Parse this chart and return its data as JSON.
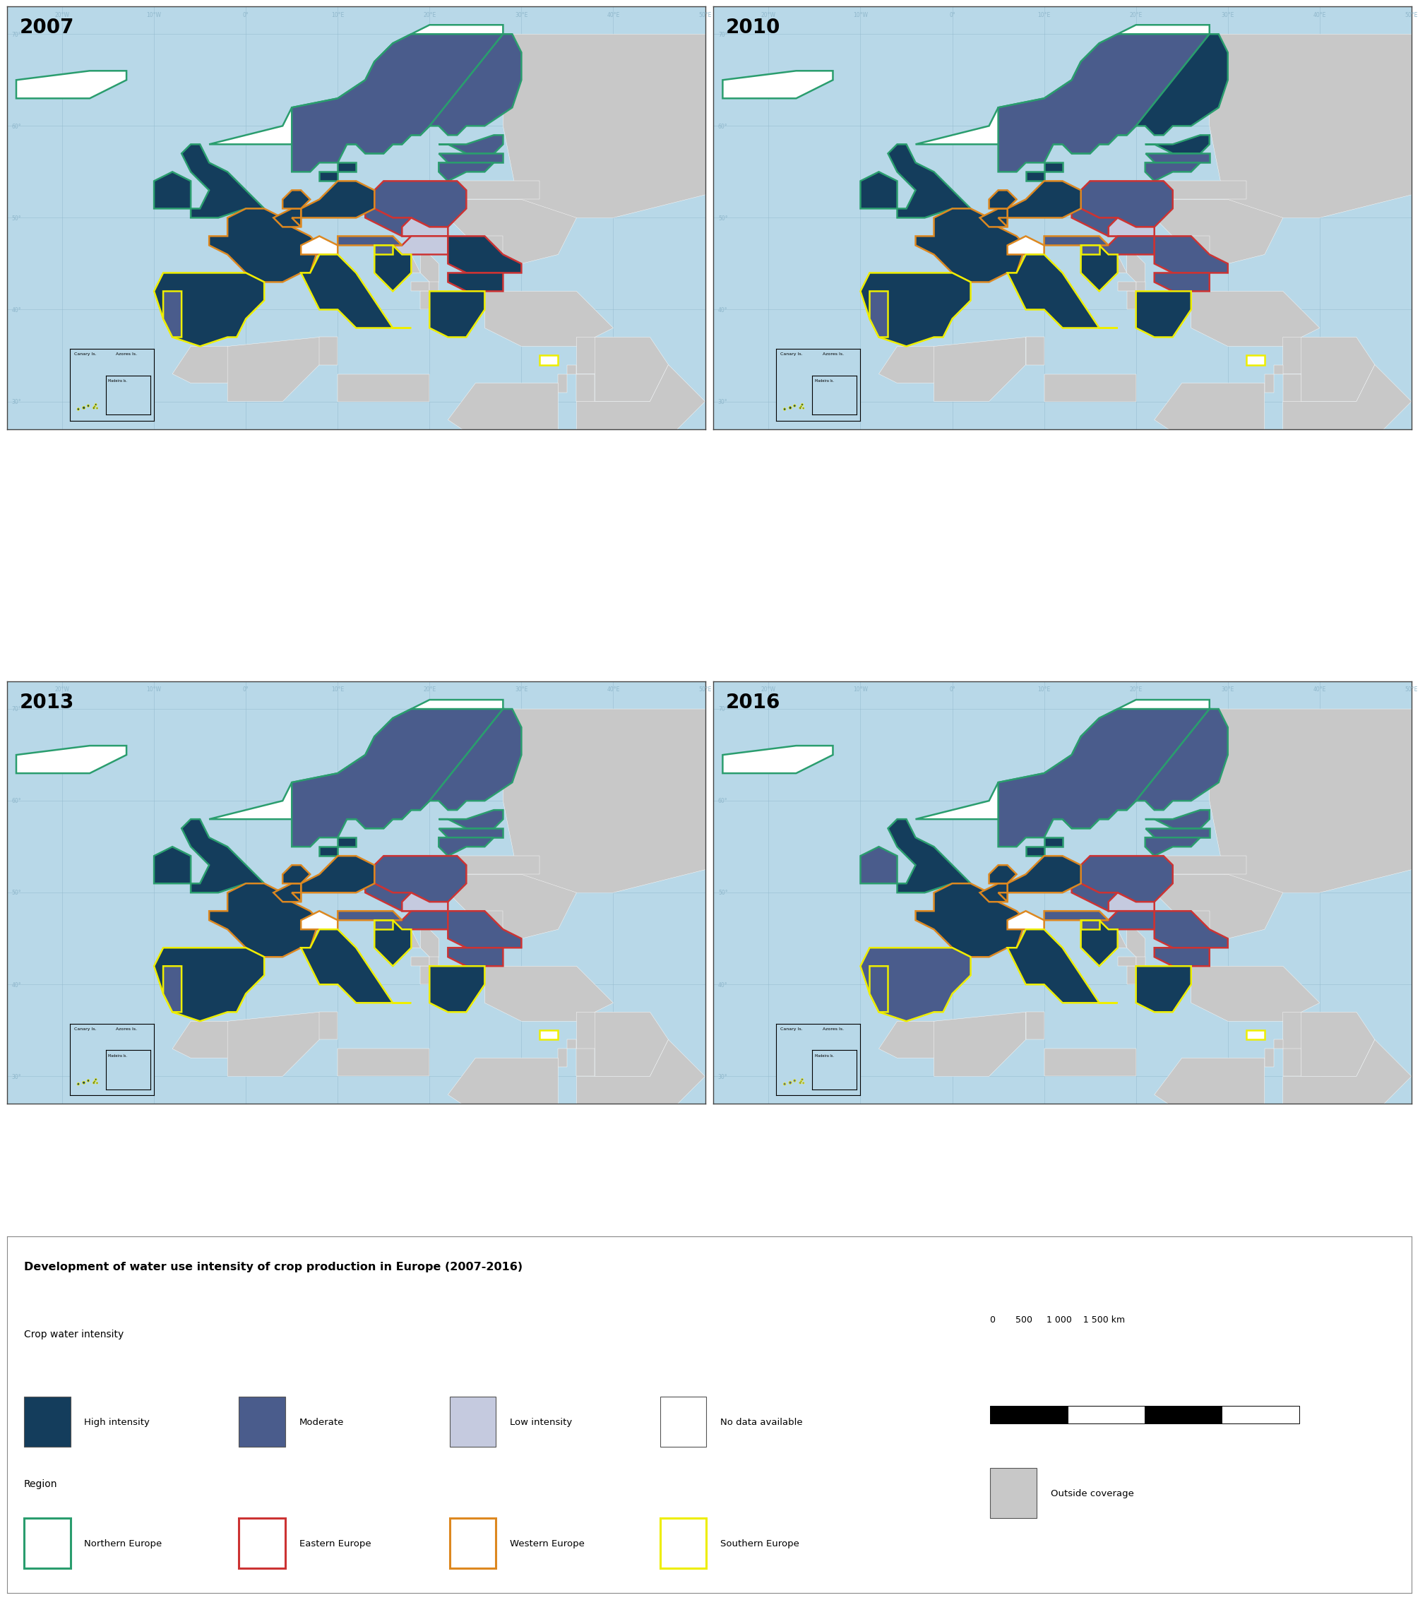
{
  "title": "Development of water use intensity of crop production in Europe (2007-2016)",
  "years": [
    "2007",
    "2010",
    "2013",
    "2016"
  ],
  "colors": {
    "high_intensity": "#143d5c",
    "moderate": "#4a5c8c",
    "low_intensity": "#c5cadf",
    "no_data": "#ffffff",
    "outside_coverage": "#c8c8c8",
    "ocean": "#b8d8e8",
    "northern_europe_border": "#2a9d6e",
    "eastern_europe_border": "#cc3333",
    "western_europe_border": "#dd8820",
    "southern_europe_border": "#eeee00",
    "background": "#ffffff",
    "map_background": "#b8d8e8",
    "graticule": "#90b8cc",
    "land_non_europe": "#c8c8c8",
    "border_internal": "#ffffff"
  },
  "legend_title": "Development of water use intensity of crop production in Europe (2007-2016)",
  "crop_water_label": "Crop water intensity",
  "region_label": "Region",
  "intensity_labels": [
    "High intensity",
    "Moderate",
    "Low intensity",
    "No data available"
  ],
  "region_labels": [
    "Northern Europe",
    "Eastern Europe",
    "Western Europe",
    "Southern Europe"
  ],
  "scale_label": "0    500   1 000   1 500 km",
  "outside_coverage_label": "Outside coverage",
  "intensity_by_year": {
    "2007": {
      "France": "high",
      "Belgium": "high",
      "Netherlands": "high",
      "Germany": "high",
      "Denmark": "high",
      "United Kingdom": "high",
      "Spain": "high",
      "Italy": "high",
      "Greece": "high",
      "Croatia": "high",
      "Bulgaria": "high",
      "Romania": "high",
      "Ireland": "high",
      "Luxembourg": "high",
      "Sweden": "moderate",
      "Finland": "moderate",
      "Estonia": "moderate",
      "Latvia": "moderate",
      "Lithuania": "moderate",
      "Poland": "moderate",
      "Czech Republic": "moderate",
      "Austria": "moderate",
      "Portugal": "moderate",
      "Slovenia": "moderate",
      "Slovakia": "low",
      "Hungary": "low",
      "Norway": "no_data",
      "Iceland": "no_data",
      "Switzerland": "no_data",
      "Cyprus": "no_data"
    },
    "2010": {
      "France": "high",
      "Belgium": "high",
      "Netherlands": "high",
      "Germany": "high",
      "Denmark": "high",
      "United Kingdom": "high",
      "Spain": "high",
      "Italy": "high",
      "Greece": "high",
      "Croatia": "high",
      "Finland": "high",
      "Estonia": "high",
      "Ireland": "high",
      "Luxembourg": "high",
      "Sweden": "moderate",
      "Latvia": "moderate",
      "Lithuania": "moderate",
      "Poland": "moderate",
      "Czech Republic": "moderate",
      "Hungary": "moderate",
      "Austria": "moderate",
      "Portugal": "moderate",
      "Romania": "moderate",
      "Bulgaria": "moderate",
      "Slovenia": "moderate",
      "Slovakia": "low",
      "Norway": "no_data",
      "Iceland": "no_data",
      "Switzerland": "no_data",
      "Cyprus": "no_data"
    },
    "2013": {
      "France": "high",
      "Belgium": "high",
      "Netherlands": "high",
      "Germany": "high",
      "Denmark": "high",
      "United Kingdom": "high",
      "Spain": "high",
      "Italy": "high",
      "Greece": "high",
      "Croatia": "high",
      "Ireland": "high",
      "Luxembourg": "high",
      "Sweden": "moderate",
      "Finland": "moderate",
      "Estonia": "moderate",
      "Latvia": "moderate",
      "Lithuania": "moderate",
      "Poland": "moderate",
      "Czech Republic": "moderate",
      "Hungary": "moderate",
      "Austria": "moderate",
      "Portugal": "moderate",
      "Romania": "moderate",
      "Bulgaria": "moderate",
      "Slovenia": "moderate",
      "Slovakia": "low",
      "Norway": "no_data",
      "Iceland": "no_data",
      "Switzerland": "no_data",
      "Cyprus": "no_data"
    },
    "2016": {
      "France": "high",
      "Belgium": "high",
      "Netherlands": "high",
      "Germany": "high",
      "Denmark": "high",
      "United Kingdom": "high",
      "Italy": "high",
      "Greece": "high",
      "Croatia": "high",
      "Luxembourg": "high",
      "Spain": "moderate",
      "Ireland": "moderate",
      "Sweden": "moderate",
      "Finland": "moderate",
      "Estonia": "moderate",
      "Latvia": "moderate",
      "Lithuania": "moderate",
      "Poland": "moderate",
      "Czech Republic": "moderate",
      "Hungary": "moderate",
      "Austria": "moderate",
      "Portugal": "moderate",
      "Romania": "moderate",
      "Bulgaria": "moderate",
      "Slovenia": "moderate",
      "Slovakia": "low",
      "Norway": "no_data",
      "Iceland": "no_data",
      "Switzerland": "no_data",
      "Cyprus": "no_data"
    }
  },
  "regions": {
    "northern": [
      "Norway",
      "Sweden",
      "Finland",
      "Denmark",
      "Estonia",
      "Latvia",
      "Lithuania",
      "Iceland",
      "Ireland",
      "United Kingdom"
    ],
    "eastern": [
      "Poland",
      "Czech Republic",
      "Slovakia",
      "Hungary",
      "Romania",
      "Bulgaria"
    ],
    "western": [
      "Germany",
      "France",
      "Belgium",
      "Netherlands",
      "Luxembourg",
      "Austria",
      "Switzerland"
    ],
    "southern": [
      "Spain",
      "Portugal",
      "Italy",
      "Greece",
      "Croatia",
      "Slovenia",
      "Cyprus"
    ]
  }
}
